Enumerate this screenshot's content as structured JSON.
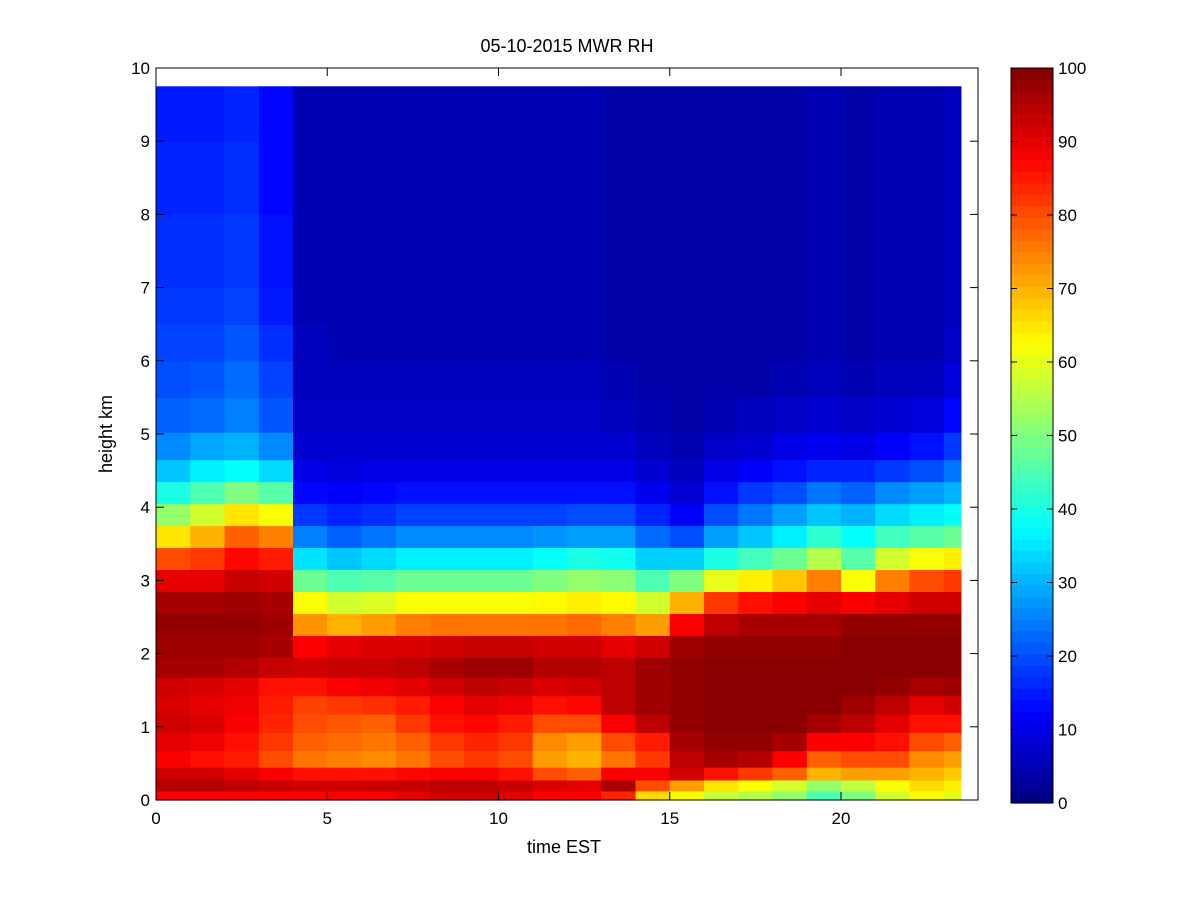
{
  "chart_data": {
    "type": "heatmap",
    "title": "05-10-2015 MWR RH",
    "xlabel": "time EST",
    "ylabel": "height km",
    "xlim": [
      0,
      24
    ],
    "ylim": [
      0,
      10
    ],
    "data_xlim": [
      0,
      23.5
    ],
    "data_ylim": [
      0,
      9.75
    ],
    "xticks": [
      0,
      5,
      10,
      15,
      20
    ],
    "yticks": [
      0,
      1,
      2,
      3,
      4,
      5,
      6,
      7,
      8,
      9,
      10
    ],
    "colorbar": {
      "colormap": "jet",
      "range": [
        0,
        100
      ],
      "ticks": [
        0,
        10,
        20,
        30,
        40,
        50,
        60,
        70,
        80,
        90,
        100
      ]
    },
    "x": [
      0.5,
      1.5,
      2.5,
      3.5,
      4.5,
      5.5,
      6.5,
      7.5,
      8.5,
      9.5,
      10.5,
      11.5,
      12.5,
      13.5,
      14.5,
      15.5,
      16.5,
      17.5,
      18.5,
      19.5,
      20.5,
      21.5,
      22.5,
      23.5
    ],
    "heights_km": [
      0.05,
      0.2,
      0.35,
      0.55,
      0.8,
      1.05,
      1.3,
      1.55,
      1.8,
      2.1,
      2.4,
      2.7,
      3.0,
      3.3,
      3.6,
      3.9,
      4.2,
      4.5,
      4.8,
      5.25,
      5.75,
      6.25,
      6.75,
      7.25,
      7.75,
      8.25,
      8.75,
      9.25,
      9.75
    ],
    "profiles": [
      [
        88,
        95,
        92,
        88,
        90,
        92,
        91,
        92,
        96,
        97,
        98,
        96,
        90,
        80,
        65,
        52,
        40,
        32,
        26,
        22,
        20,
        19,
        18,
        17,
        17,
        16,
        16,
        15,
        15
      ],
      [
        88,
        95,
        92,
        86,
        89,
        91,
        90,
        91,
        96,
        97,
        98,
        96,
        90,
        82,
        70,
        58,
        45,
        36,
        29,
        23,
        21,
        19,
        18,
        17,
        17,
        16,
        16,
        15,
        15
      ],
      [
        88,
        94,
        90,
        85,
        86,
        88,
        89,
        90,
        95,
        97,
        98,
        97,
        93,
        87,
        78,
        65,
        50,
        38,
        30,
        25,
        23,
        21,
        19,
        18,
        18,
        17,
        17,
        16,
        16
      ],
      [
        88,
        93,
        88,
        80,
        82,
        84,
        85,
        86,
        93,
        96,
        97,
        96,
        92,
        85,
        75,
        62,
        46,
        34,
        26,
        21,
        19,
        17,
        15,
        14,
        14,
        13,
        13,
        13,
        13
      ],
      [
        88,
        92,
        86,
        76,
        78,
        80,
        81,
        86,
        92,
        88,
        73,
        62,
        48,
        35,
        25,
        18,
        13,
        10,
        8,
        7,
        6,
        6,
        5,
        5,
        5,
        5,
        5,
        5,
        5
      ],
      [
        88,
        92,
        86,
        75,
        77,
        79,
        82,
        88,
        93,
        90,
        70,
        58,
        45,
        32,
        22,
        16,
        12,
        9,
        8,
        7,
        6,
        5,
        5,
        5,
        5,
        5,
        5,
        5,
        5
      ],
      [
        88,
        93,
        86,
        74,
        76,
        78,
        83,
        89,
        93,
        91,
        72,
        59,
        46,
        34,
        24,
        17,
        13,
        10,
        8,
        7,
        6,
        5,
        5,
        5,
        5,
        5,
        5,
        5,
        5
      ],
      [
        90,
        93,
        87,
        76,
        78,
        82,
        85,
        90,
        94,
        91,
        75,
        62,
        48,
        36,
        26,
        19,
        14,
        10,
        8,
        7,
        6,
        5,
        5,
        5,
        5,
        5,
        5,
        5,
        5
      ],
      [
        92,
        94,
        88,
        80,
        82,
        86,
        88,
        92,
        96,
        92,
        76,
        62,
        48,
        36,
        26,
        19,
        14,
        10,
        8,
        7,
        6,
        5,
        5,
        5,
        5,
        5,
        5,
        5,
        5
      ],
      [
        92,
        94,
        88,
        82,
        84,
        87,
        90,
        94,
        97,
        93,
        76,
        62,
        48,
        36,
        26,
        19,
        14,
        10,
        8,
        7,
        6,
        5,
        5,
        5,
        5,
        5,
        5,
        5,
        5
      ],
      [
        90,
        93,
        86,
        80,
        82,
        85,
        89,
        93,
        97,
        93,
        76,
        62,
        48,
        36,
        26,
        19,
        14,
        10,
        8,
        7,
        6,
        5,
        5,
        5,
        5,
        5,
        5,
        5,
        5
      ],
      [
        88,
        91,
        80,
        72,
        74,
        80,
        86,
        91,
        95,
        92,
        76,
        63,
        50,
        38,
        27,
        19,
        14,
        10,
        8,
        7,
        6,
        5,
        5,
        5,
        5,
        5,
        5,
        5,
        5
      ],
      [
        88,
        90,
        78,
        70,
        72,
        80,
        87,
        92,
        95,
        92,
        77,
        64,
        52,
        40,
        28,
        20,
        14,
        10,
        8,
        7,
        6,
        5,
        5,
        5,
        5,
        5,
        5,
        5,
        5
      ],
      [
        84,
        96,
        88,
        76,
        80,
        88,
        94,
        94,
        94,
        90,
        75,
        63,
        51,
        39,
        28,
        20,
        14,
        10,
        8,
        6,
        5,
        4,
        4,
        4,
        4,
        4,
        4,
        4,
        4
      ],
      [
        66,
        80,
        88,
        82,
        85,
        94,
        97,
        97,
        97,
        92,
        72,
        58,
        45,
        33,
        23,
        16,
        11,
        8,
        6,
        5,
        4,
        4,
        4,
        4,
        4,
        4,
        4,
        4,
        4
      ],
      [
        62,
        72,
        92,
        94,
        96,
        98,
        98,
        98,
        98,
        97,
        88,
        70,
        50,
        33,
        20,
        12,
        8,
        6,
        5,
        4,
        4,
        4,
        4,
        4,
        4,
        4,
        4,
        4,
        4
      ],
      [
        57,
        65,
        86,
        96,
        98,
        99,
        99,
        99,
        99,
        98,
        94,
        82,
        60,
        40,
        28,
        20,
        14,
        10,
        7,
        5,
        4,
        4,
        4,
        4,
        4,
        4,
        4,
        4,
        4
      ],
      [
        55,
        62,
        82,
        95,
        98,
        99,
        99,
        99,
        99,
        98,
        96,
        86,
        64,
        44,
        32,
        24,
        18,
        12,
        8,
        6,
        4,
        4,
        4,
        4,
        4,
        4,
        4,
        4,
        4
      ],
      [
        52,
        58,
        78,
        88,
        96,
        99,
        99,
        99,
        99,
        98,
        96,
        88,
        68,
        48,
        36,
        28,
        20,
        14,
        10,
        7,
        5,
        4,
        4,
        4,
        4,
        4,
        4,
        4,
        4
      ],
      [
        45,
        52,
        70,
        78,
        88,
        96,
        99,
        99,
        99,
        98,
        96,
        90,
        75,
        55,
        42,
        32,
        24,
        16,
        11,
        8,
        6,
        5,
        5,
        5,
        5,
        5,
        5,
        5,
        5
      ],
      [
        50,
        56,
        72,
        80,
        88,
        94,
        97,
        99,
        99,
        99,
        98,
        88,
        62,
        46,
        38,
        30,
        22,
        16,
        10,
        7,
        5,
        4,
        4,
        4,
        4,
        4,
        4,
        4,
        4
      ],
      [
        58,
        62,
        72,
        80,
        86,
        90,
        94,
        98,
        99,
        99,
        98,
        90,
        75,
        58,
        44,
        34,
        26,
        18,
        12,
        8,
        6,
        5,
        5,
        5,
        5,
        5,
        5,
        5,
        5
      ],
      [
        62,
        66,
        70,
        74,
        80,
        86,
        90,
        96,
        99,
        99,
        98,
        92,
        80,
        62,
        46,
        36,
        28,
        20,
        14,
        9,
        6,
        5,
        5,
        5,
        5,
        5,
        5,
        5,
        5
      ],
      [
        60,
        64,
        68,
        72,
        78,
        86,
        92,
        97,
        99,
        99,
        98,
        92,
        82,
        64,
        48,
        38,
        30,
        24,
        18,
        13,
        9,
        7,
        6,
        6,
        6,
        6,
        6,
        6,
        6
      ]
    ]
  }
}
